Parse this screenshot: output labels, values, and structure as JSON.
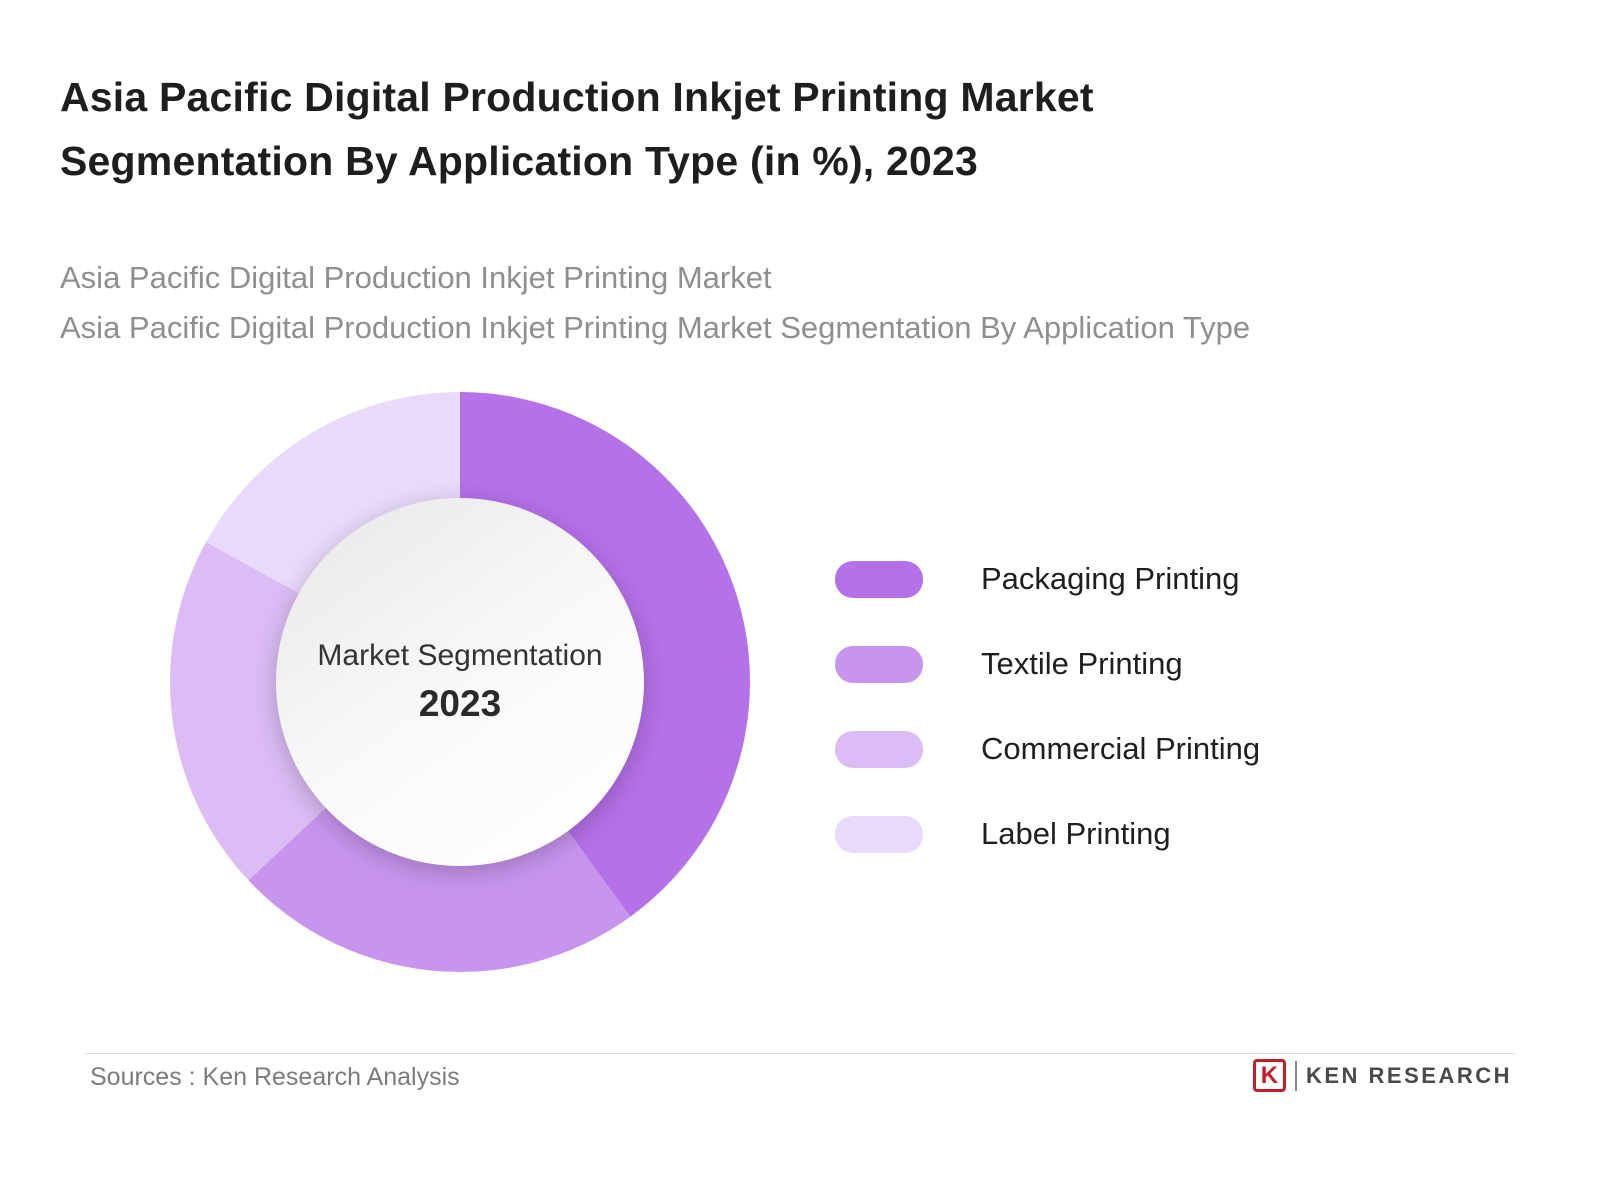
{
  "header": {
    "title": "Asia Pacific Digital Production Inkjet Printing Market Segmentation By Application Type (in %), 2023",
    "subtitle_line1": "Asia Pacific Digital Production Inkjet Printing Market",
    "subtitle_line2": "Asia Pacific Digital Production Inkjet Printing Market Segmentation By Application Type"
  },
  "chart_data": {
    "type": "pie",
    "variant": "donut",
    "title": "Asia Pacific Digital Production Inkjet Printing Market Segmentation By Application Type (in %), 2023",
    "center_label_line1": "Market Segmentation",
    "center_label_line2": "2023",
    "start_angle_deg": 0,
    "direction": "clockwise",
    "values_labeled_on_chart": false,
    "legend_position": "right",
    "segments": [
      {
        "label": "Packaging Printing",
        "value_pct": 40,
        "color": "#b571e8"
      },
      {
        "label": "Textile Printing",
        "value_pct": 23,
        "color": "#c795ee"
      },
      {
        "label": "Commercial Printing",
        "value_pct": 20,
        "color": "#dbbcf5"
      },
      {
        "label": "Label Printing",
        "value_pct": 17,
        "color": "#e9d9fa"
      }
    ]
  },
  "footer": {
    "source_text": "Sources : Ken Research Analysis",
    "brand_initial": "K",
    "brand": "KEN RESEARCH"
  }
}
